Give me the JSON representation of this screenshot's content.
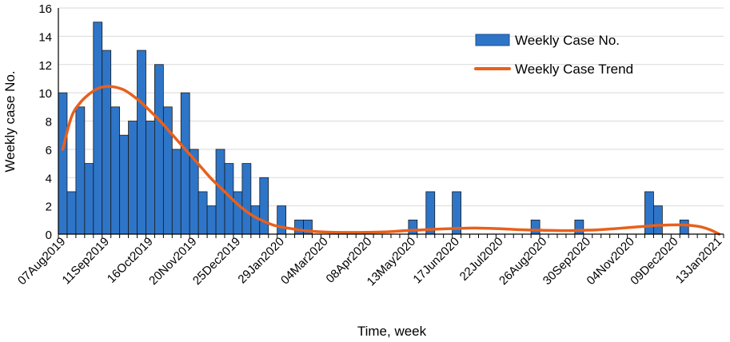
{
  "chart_data": {
    "type": "bar",
    "title": "",
    "xlabel": "Time, week",
    "ylabel": "Weekly case No.",
    "ylim": [
      0,
      16
    ],
    "yticks": [
      0,
      2,
      4,
      6,
      8,
      10,
      12,
      14,
      16
    ],
    "grid": "horizontal",
    "legend_position": "top-right",
    "x_tick_labels": [
      "07Aug2019",
      "11Sep2019",
      "16Oct2019",
      "20Nov2019",
      "25Dec2019",
      "29Jan2020",
      "04Mar2020",
      "08Apr2020",
      "13May2020",
      "17Jun2020",
      "22Jul2020",
      "26Aug2020",
      "30Sep2020",
      "04Nov2020",
      "09Dec2020",
      "13Jan2021"
    ],
    "x_tick_week_index": [
      0,
      5,
      10,
      15,
      20,
      25,
      30,
      35,
      40,
      45,
      50,
      55,
      60,
      65,
      70,
      75
    ],
    "n_weeks": 76,
    "series": [
      {
        "name": "Weekly Case No.",
        "kind": "bar",
        "color": "#2e75c8",
        "values": [
          10,
          3,
          9,
          5,
          15,
          13,
          9,
          7,
          8,
          13,
          8,
          12,
          9,
          6,
          10,
          6,
          3,
          2,
          6,
          5,
          3,
          5,
          2,
          4,
          0,
          2,
          0,
          1,
          1,
          0,
          0,
          0,
          0,
          0,
          0,
          0,
          0,
          0,
          0,
          0,
          1,
          0,
          3,
          0,
          0,
          3,
          0,
          0,
          0,
          0,
          0,
          0,
          0,
          0,
          1,
          0,
          0,
          0,
          0,
          1,
          0,
          0,
          0,
          0,
          0,
          0,
          0,
          3,
          2,
          0,
          0,
          1,
          0,
          0,
          0,
          0
        ]
      },
      {
        "name": "Weekly Case Trend",
        "kind": "line",
        "color": "#e8601c",
        "values": [
          6.0,
          8.3,
          9.3,
          9.9,
          10.3,
          10.45,
          10.4,
          10.2,
          9.8,
          9.3,
          8.7,
          8.1,
          7.4,
          6.7,
          6.0,
          5.3,
          4.6,
          3.9,
          3.3,
          2.7,
          2.1,
          1.6,
          1.2,
          0.9,
          0.65,
          0.5,
          0.4,
          0.3,
          0.22,
          0.18,
          0.15,
          0.13,
          0.12,
          0.12,
          0.12,
          0.13,
          0.14,
          0.16,
          0.2,
          0.24,
          0.27,
          0.3,
          0.33,
          0.36,
          0.38,
          0.4,
          0.42,
          0.43,
          0.42,
          0.4,
          0.38,
          0.35,
          0.32,
          0.3,
          0.28,
          0.27,
          0.26,
          0.25,
          0.25,
          0.26,
          0.28,
          0.3,
          0.34,
          0.38,
          0.43,
          0.48,
          0.53,
          0.58,
          0.62,
          0.64,
          0.66,
          0.65,
          0.6,
          0.5,
          0.3,
          0.0
        ]
      }
    ]
  }
}
